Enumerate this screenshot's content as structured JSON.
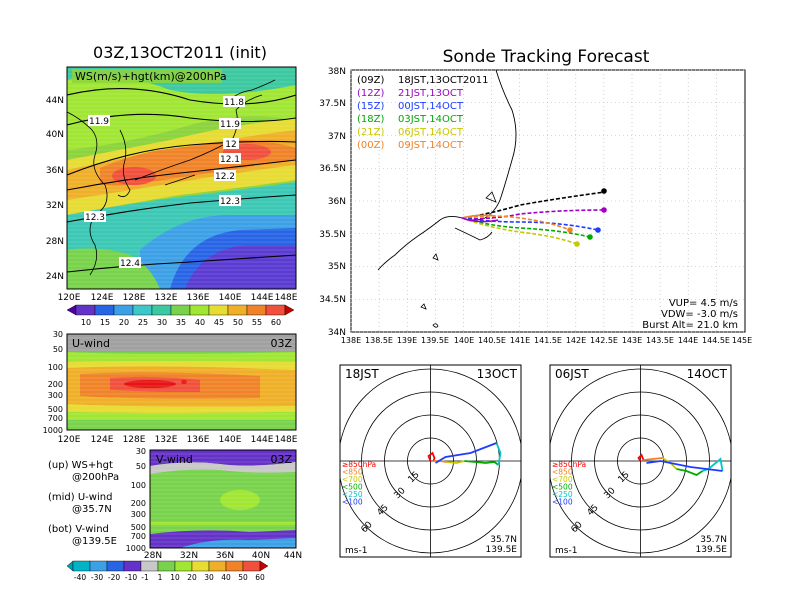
{
  "main_panel": {
    "title": "03Z,13OCT2011 (init)",
    "label": "WS(m/s)+hgt(km)@200hPa"
  },
  "tracking": {
    "title": "Sonde Tracking Forecast"
  },
  "main_map": {
    "lat_ticks": [
      "44N",
      "40N",
      "36N",
      "32N",
      "28N",
      "24N"
    ],
    "lon_ticks": [
      "120E",
      "124E",
      "128E",
      "132E",
      "136E",
      "140E",
      "144E",
      "148E"
    ],
    "contour_labels": [
      "11.8",
      "11.9",
      "11.9",
      "12",
      "12.1",
      "12.2",
      "12.3",
      "12.3",
      "12.4"
    ]
  },
  "ws_colorbar": {
    "labels": [
      "10",
      "15",
      "20",
      "25",
      "30",
      "35",
      "40",
      "45",
      "50",
      "55",
      "60"
    ]
  },
  "u_panel": {
    "label": "U-wind",
    "time": "03Z",
    "p_ticks": [
      "30",
      "50",
      "100",
      "200",
      "300",
      "500",
      "700",
      "1000"
    ],
    "lon_ticks": [
      "120E",
      "124E",
      "128E",
      "132E",
      "136E",
      "140E",
      "144E",
      "148E"
    ]
  },
  "v_panel": {
    "label": "V-wind",
    "time": "03Z",
    "p_ticks": [
      "30",
      "50",
      "100",
      "200",
      "300",
      "500",
      "700",
      "1000"
    ],
    "lat_ticks": [
      "28N",
      "32N",
      "36N",
      "40N",
      "44N"
    ]
  },
  "legend_text": {
    "up": "(up) WS+hgt",
    "up2": "@200hPa",
    "mid": "(mid) U-wind",
    "mid2": "@35.7N",
    "bot": "(bot) V-wind",
    "bot2": "@139.5E"
  },
  "v_colorbar": {
    "labels": [
      "-40",
      "-30",
      "-20",
      "-10",
      "-1",
      "1",
      "10",
      "20",
      "30",
      "40",
      "50",
      "60"
    ]
  },
  "track_map": {
    "lat_ticks": [
      "38N",
      "37.5N",
      "37N",
      "36.5N",
      "36N",
      "35.5N",
      "35N",
      "34.5N",
      "34N"
    ],
    "lon_ticks": [
      "138E",
      "138.5E",
      "139E",
      "139.5E",
      "140E",
      "140.5E",
      "141E",
      "141.5E",
      "142E",
      "142.5E",
      "143E",
      "143.5E",
      "144E",
      "144.5E",
      "145E"
    ],
    "legend": [
      {
        "z": "(09Z)",
        "jst": "18JST,13OCT2011",
        "color": "#000000"
      },
      {
        "z": "(12Z)",
        "jst": "21JST,13OCT",
        "color": "#a000c8"
      },
      {
        "z": "(15Z)",
        "jst": "00JST,14OCT",
        "color": "#1e3cff"
      },
      {
        "z": "(18Z)",
        "jst": "03JST,14OCT",
        "color": "#00aa00"
      },
      {
        "z": "(21Z)",
        "jst": "06JST,14OCT",
        "color": "#c8c800"
      },
      {
        "z": "(00Z)",
        "jst": "09JST,14OCT",
        "color": "#f08228"
      }
    ],
    "params": {
      "vup": "VUP= 4.5 m/s",
      "vdw": "VDW= -3.0 m/s",
      "burst": "Burst Alt= 21.0 km"
    }
  },
  "hodo_left": {
    "jst": "18JST",
    "date": "13OCT",
    "levels": [
      "≥850hPa",
      "<850",
      "<700",
      "<500",
      "<250",
      "<100"
    ],
    "level_colors": [
      "#ff0000",
      "#f08228",
      "#c8c800",
      "#00aa00",
      "#00c8c8",
      "#1e3cff"
    ],
    "rings": [
      "15",
      "30",
      "45",
      "60"
    ],
    "unit": "ms-1",
    "lat": "35.7N",
    "lon": "139.5E"
  },
  "hodo_right": {
    "jst": "06JST",
    "date": "14OCT",
    "levels": [
      "≥850hPa",
      "<850",
      "<700",
      "<500",
      "<250",
      "<100"
    ],
    "level_colors": [
      "#ff0000",
      "#f08228",
      "#c8c800",
      "#00aa00",
      "#00c8c8",
      "#1e3cff"
    ],
    "rings": [
      "15",
      "30",
      "45",
      "60"
    ],
    "unit": "ms-1",
    "lat": "35.7N",
    "lon": "139.5E"
  }
}
